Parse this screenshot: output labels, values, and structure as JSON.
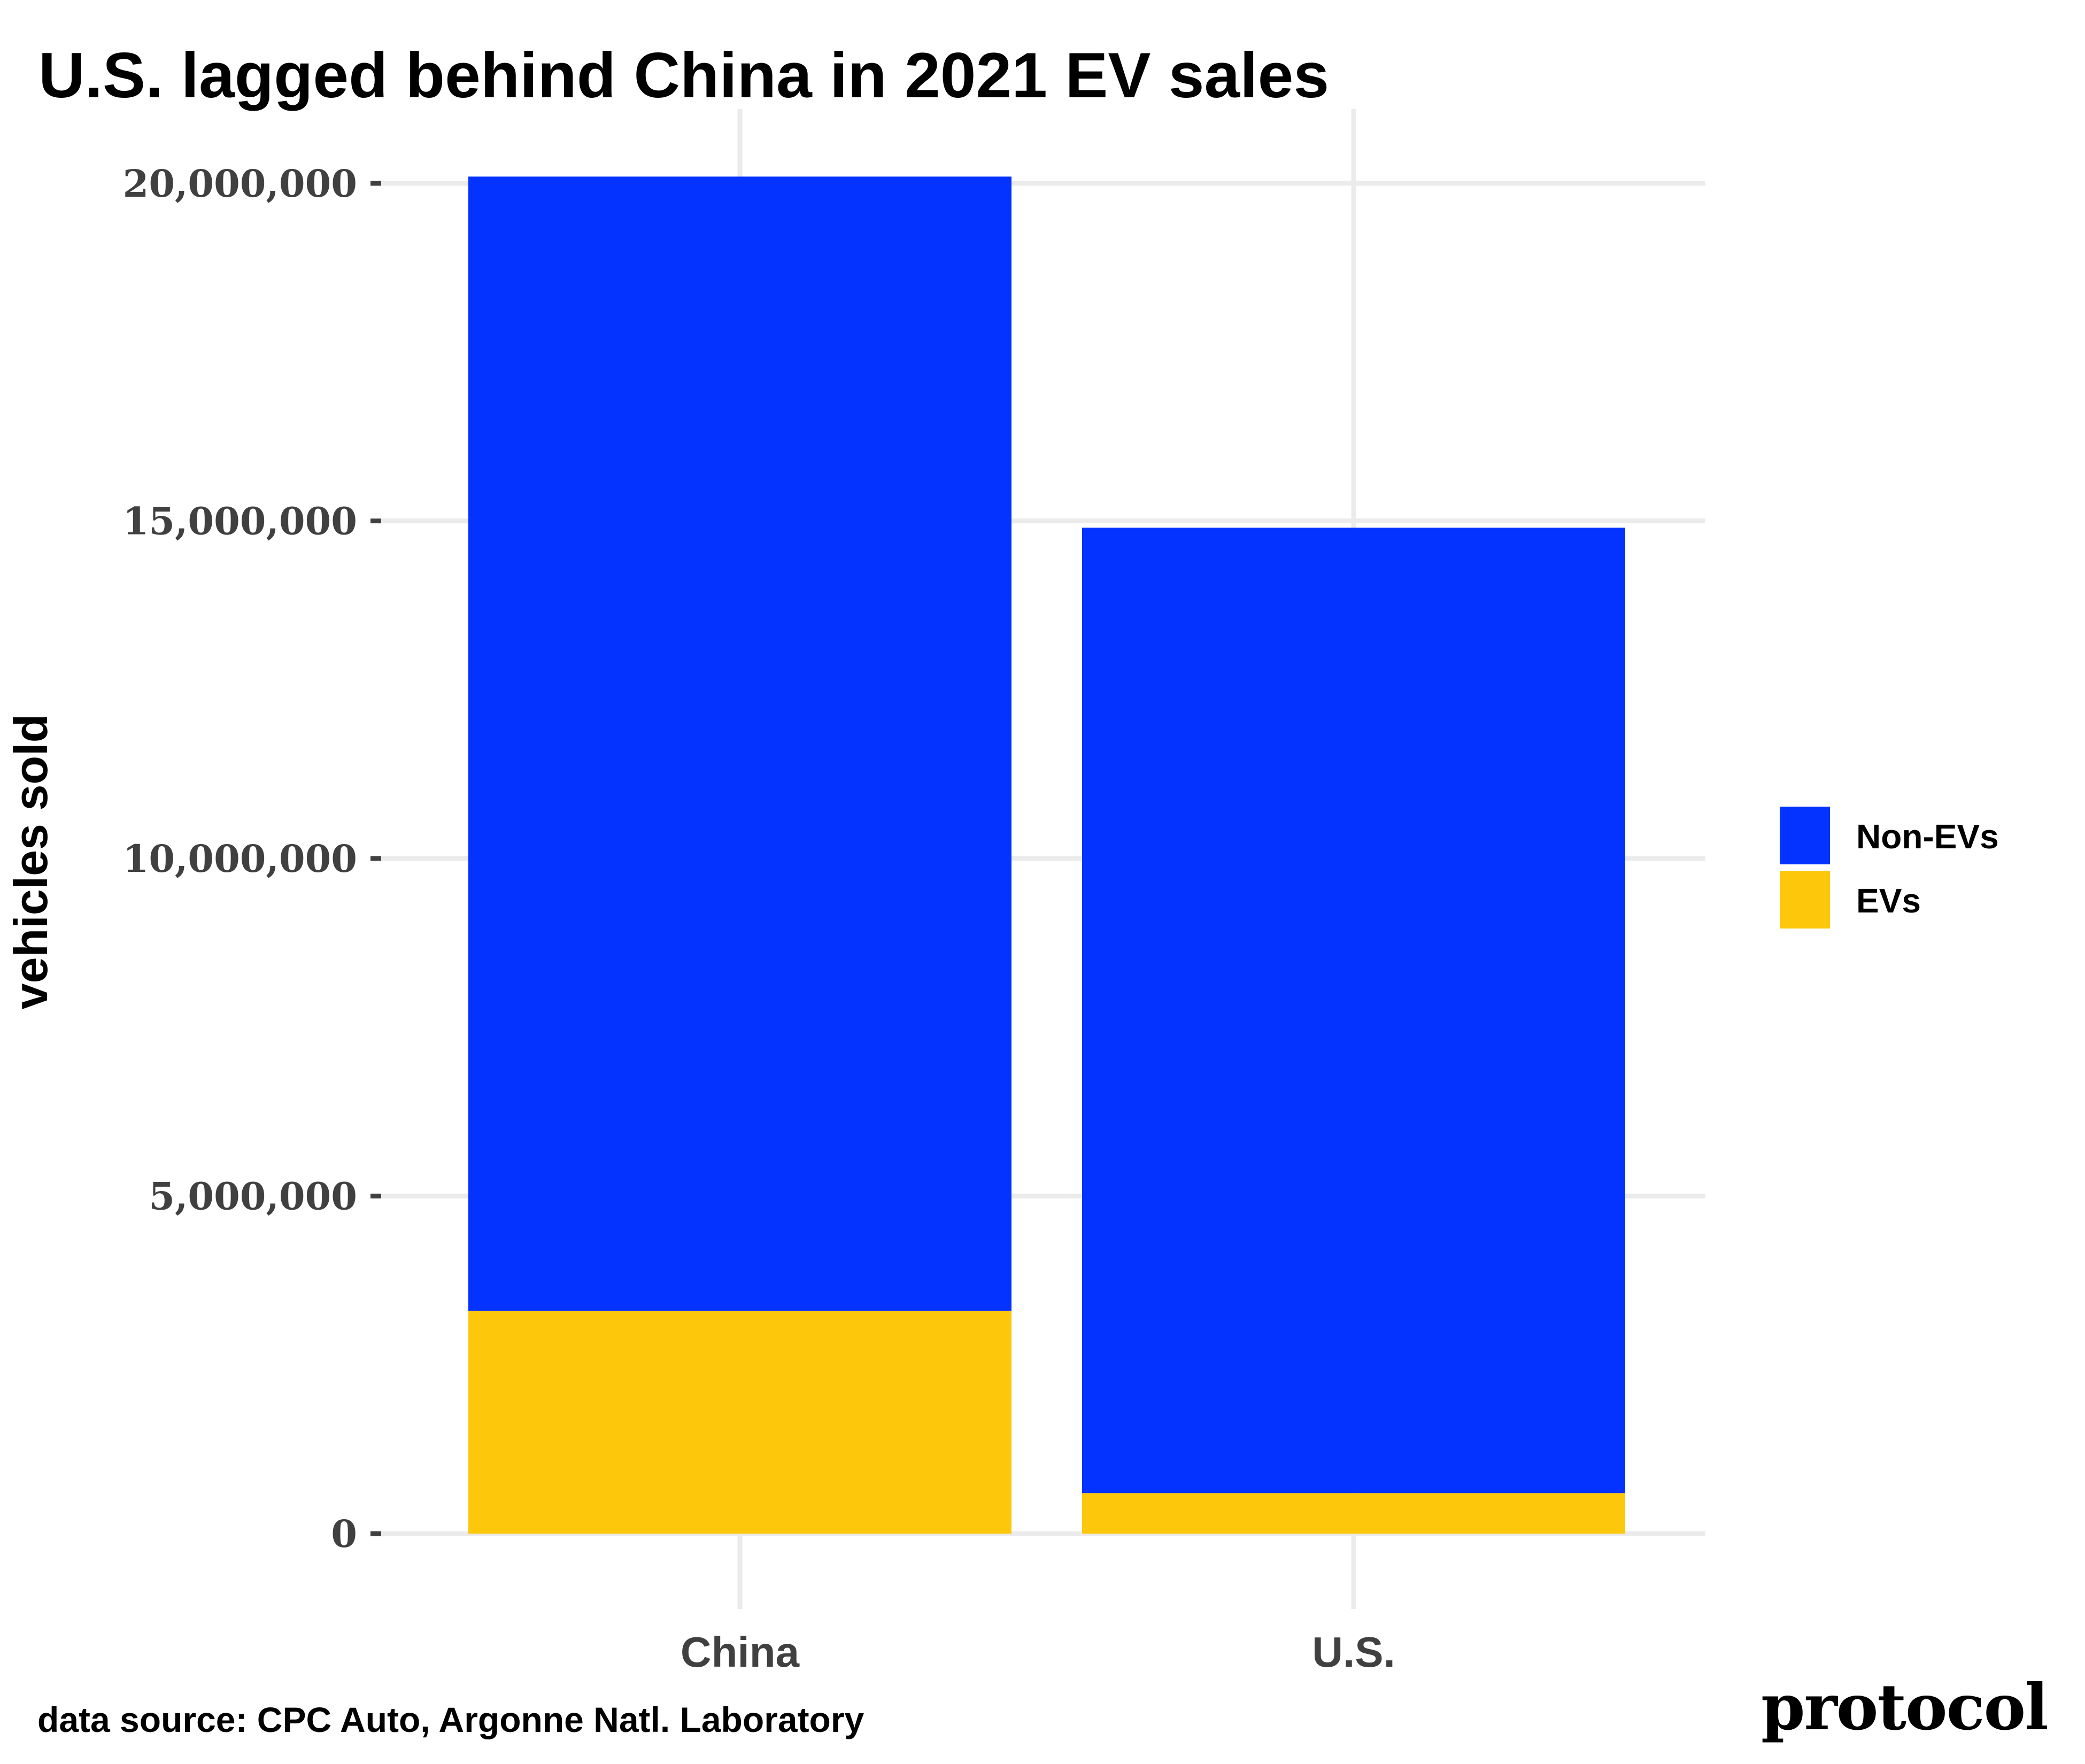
{
  "chart_data": {
    "type": "bar",
    "stacked": true,
    "title": "U.S. lagged behind China in 2021 EV sales",
    "xlabel": "",
    "ylabel": "vehicles sold",
    "categories": [
      "China",
      "U.S."
    ],
    "series": [
      {
        "name": "EVs",
        "color": "#FDC70C",
        "values": [
          3300000,
          600000
        ]
      },
      {
        "name": "Non-EVs",
        "color": "#0433FF",
        "values": [
          16800000,
          14300000
        ]
      }
    ],
    "totals": [
      20100000,
      14900000
    ],
    "ylim": [
      0,
      20000000
    ],
    "yticks": [
      0,
      5000000,
      10000000,
      15000000,
      20000000
    ],
    "ytick_labels": [
      "0",
      "5,000,000",
      "10,000,000",
      "15,000,000",
      "20,000,000"
    ],
    "grid": true,
    "legend": {
      "placement": "right",
      "entries": [
        {
          "label": "Non-EVs",
          "color": "#0433FF"
        },
        {
          "label": "EVs",
          "color": "#FDC70C"
        }
      ]
    }
  },
  "caption": "data source: CPC Auto, Argonne Natl. Laboratory",
  "brand": "protocol",
  "colors": {
    "grid": "#EBEBEB",
    "tick": "#404040"
  }
}
